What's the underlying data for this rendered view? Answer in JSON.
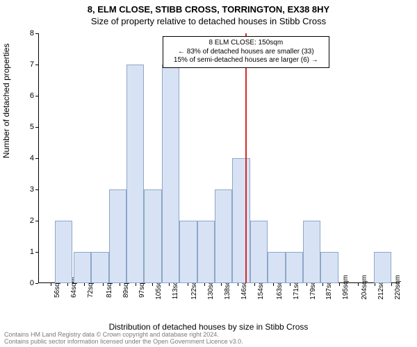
{
  "chart": {
    "type": "histogram",
    "title_line1": "8, ELM CLOSE, STIBB CROSS, TORRINGTON, EX38 8HY",
    "title_line2": "Size of property relative to detached houses in Stibb Cross",
    "yaxis_label": "Number of detached properties",
    "xaxis_label": "Distribution of detached houses by size in Stibb Cross",
    "ylim": [
      0,
      8
    ],
    "ytick_step": 1,
    "x_min": 50,
    "x_max": 224,
    "xticks": [
      56,
      64,
      72,
      81,
      89,
      97,
      105,
      113,
      122,
      130,
      138,
      146,
      154,
      163,
      171,
      179,
      187,
      195,
      204,
      212,
      220
    ],
    "xtick_suffix": "sqm",
    "bars": [
      {
        "x": 58,
        "w": 8.5,
        "v": 2
      },
      {
        "x": 67,
        "w": 8.5,
        "v": 1
      },
      {
        "x": 75.5,
        "w": 8.5,
        "v": 1
      },
      {
        "x": 84,
        "w": 8.5,
        "v": 3
      },
      {
        "x": 92.5,
        "w": 8.5,
        "v": 7
      },
      {
        "x": 101,
        "w": 8.5,
        "v": 3
      },
      {
        "x": 109.5,
        "w": 8.5,
        "v": 7
      },
      {
        "x": 118,
        "w": 8.5,
        "v": 2
      },
      {
        "x": 126.5,
        "w": 8.5,
        "v": 2
      },
      {
        "x": 135,
        "w": 8.5,
        "v": 3
      },
      {
        "x": 143.5,
        "w": 8.5,
        "v": 4
      },
      {
        "x": 152,
        "w": 8.5,
        "v": 2
      },
      {
        "x": 160.5,
        "w": 8.5,
        "v": 1
      },
      {
        "x": 169,
        "w": 8.5,
        "v": 1
      },
      {
        "x": 177.5,
        "w": 8.5,
        "v": 2
      },
      {
        "x": 186,
        "w": 8.5,
        "v": 1
      },
      {
        "x": 211.5,
        "w": 8.5,
        "v": 1
      }
    ],
    "bar_fill": "#d7e3f4",
    "bar_border": "#8da6c8",
    "marker_x": 150,
    "marker_color": "#d62728",
    "background_color": "#ffffff",
    "axis_color": "#000000",
    "tick_fontsize": 11,
    "label_fontsize": 12,
    "title_fontsize": 13,
    "annotation": {
      "line1": "8 ELM CLOSE: 150sqm",
      "line2": "← 83% of detached houses are smaller (33)",
      "line3": "15% of semi-detached houses are larger (6) →"
    },
    "footer_line1": "Contains HM Land Registry data © Crown copyright and database right 2024.",
    "footer_line2": "Contains public sector information licensed under the Open Government Licence v3.0."
  }
}
